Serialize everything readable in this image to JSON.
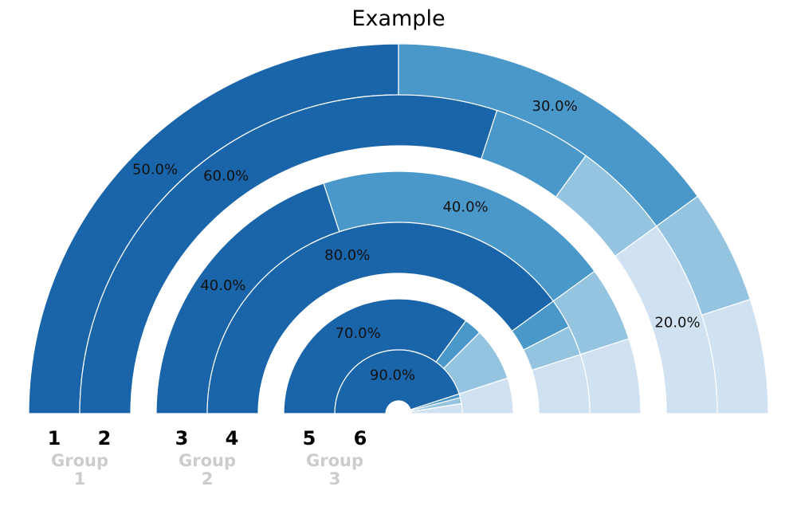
{
  "chart_data": {
    "type": "nested-semicircle-donut",
    "title": "Example",
    "colors": [
      "#1a65aa",
      "#4a98c9",
      "#94c4df",
      "#d0e1f1"
    ],
    "groups": [
      {
        "label": "Group\n1",
        "rings": [
          {
            "label": "1",
            "values": [
              50,
              30,
              10,
              10
            ],
            "data_label": "50.0%"
          },
          {
            "label": "2",
            "values": [
              60,
              10,
              10,
              20
            ],
            "data_label": "60.0%"
          }
        ]
      },
      {
        "label": "Group\n2",
        "rings": [
          {
            "label": "3",
            "values": [
              40,
              40,
              10,
              10
            ],
            "data_label": "40.0%"
          },
          {
            "label": "4",
            "values": [
              80,
              5,
              5,
              10
            ],
            "data_label": "80.0%"
          }
        ]
      },
      {
        "label": "Group\n3",
        "rings": [
          {
            "label": "5",
            "values": [
              70,
              5,
              15,
              10
            ],
            "data_label": "70.0%"
          },
          {
            "label": "6",
            "values": [
              90,
              2,
              3,
              5
            ],
            "data_label": "90.0%"
          }
        ]
      }
    ],
    "extra_labels": [
      {
        "text": "30.0%",
        "group": 0,
        "ring": 0,
        "segment": 1
      },
      {
        "text": "20.0%",
        "group": 0,
        "ring": 1,
        "segment": 3
      },
      {
        "text": "40.0%",
        "group": 1,
        "ring": 0,
        "segment": 1
      }
    ]
  }
}
